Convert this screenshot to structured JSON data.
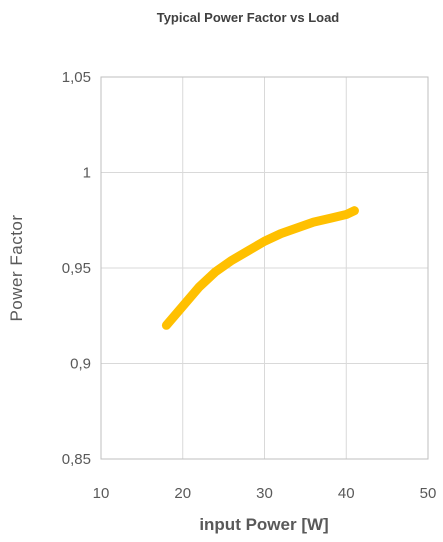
{
  "chart_data": {
    "type": "line",
    "title": "Typical Power Factor vs Load",
    "xlabel": "input Power [W]",
    "ylabel": "Power Factor",
    "xlim": [
      10,
      50
    ],
    "ylim": [
      0.85,
      1.05
    ],
    "x_ticks": [
      10,
      20,
      30,
      40,
      50
    ],
    "y_ticks": [
      0.85,
      0.9,
      0.95,
      1,
      1.05
    ],
    "x_tick_labels": [
      "10",
      "20",
      "30",
      "40",
      "50"
    ],
    "y_tick_labels": [
      "0,85",
      "0,9",
      "0,95",
      "1",
      "1,05"
    ],
    "grid": true,
    "legend": "none",
    "series": [
      {
        "color": "#FFC000",
        "x": [
          18,
          20,
          22,
          24,
          26,
          28,
          30,
          32,
          34,
          36,
          38,
          40,
          41
        ],
        "y": [
          0.92,
          0.93,
          0.94,
          0.948,
          0.954,
          0.959,
          0.964,
          0.968,
          0.971,
          0.974,
          0.976,
          0.978,
          0.98
        ]
      }
    ]
  }
}
